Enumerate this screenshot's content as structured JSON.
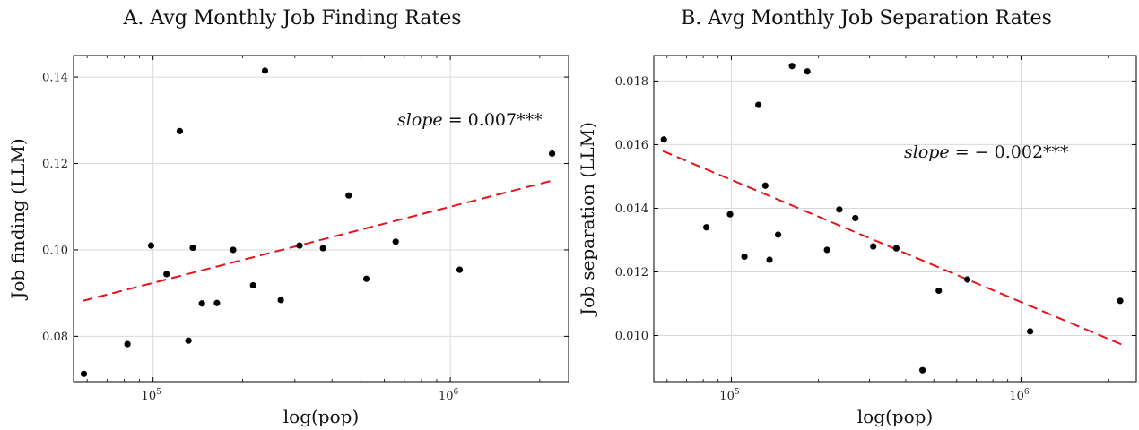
{
  "chart_data": [
    {
      "type": "scatter",
      "title": "A. Avg Monthly Job Finding Rates",
      "xlabel": "log(pop)",
      "ylabel": "Job finding (LLM)",
      "xscale": "log",
      "xlim": [
        54000,
        2500000
      ],
      "ylim": [
        0.0695,
        0.145
      ],
      "xticks": [
        100000,
        1000000
      ],
      "xtick_labels": [
        {
          "base": "10",
          "exp": "5"
        },
        {
          "base": "10",
          "exp": "6"
        }
      ],
      "yticks": [
        0.08,
        0.1,
        0.12,
        0.14
      ],
      "ytick_labels": [
        "0.08",
        "0.10",
        "0.12",
        "0.14"
      ],
      "grid": true,
      "annotation": {
        "italic": "slope",
        "rest": " = 0.007***"
      },
      "fit_line": {
        "color": "#e8121b",
        "style": "dashed",
        "x": [
          58000,
          2250000
        ],
        "y": [
          0.0882,
          0.1162
        ]
      },
      "points": [
        {
          "x": 58500,
          "y": 0.0713
        },
        {
          "x": 82000,
          "y": 0.0782
        },
        {
          "x": 98500,
          "y": 0.101
        },
        {
          "x": 111000,
          "y": 0.0944
        },
        {
          "x": 123000,
          "y": 0.1275
        },
        {
          "x": 131500,
          "y": 0.079
        },
        {
          "x": 136000,
          "y": 0.1005
        },
        {
          "x": 146000,
          "y": 0.0876
        },
        {
          "x": 164000,
          "y": 0.0877
        },
        {
          "x": 186000,
          "y": 0.1
        },
        {
          "x": 217000,
          "y": 0.0918
        },
        {
          "x": 238000,
          "y": 0.1415
        },
        {
          "x": 269000,
          "y": 0.0884
        },
        {
          "x": 311000,
          "y": 0.101
        },
        {
          "x": 373000,
          "y": 0.1004
        },
        {
          "x": 455000,
          "y": 0.1126
        },
        {
          "x": 522000,
          "y": 0.0933
        },
        {
          "x": 655000,
          "y": 0.1019
        },
        {
          "x": 1075000,
          "y": 0.0954
        },
        {
          "x": 2200000,
          "y": 0.1223
        }
      ],
      "point_color": "#000000"
    },
    {
      "type": "scatter",
      "title": "B. Avg Monthly Job Separation Rates",
      "xlabel": "log(pop)",
      "ylabel": "Job separation (LLM)",
      "xscale": "log",
      "xlim": [
        54000,
        2500000
      ],
      "ylim": [
        0.00855,
        0.0188
      ],
      "xticks": [
        100000,
        1000000
      ],
      "xtick_labels": [
        {
          "base": "10",
          "exp": "5"
        },
        {
          "base": "10",
          "exp": "6"
        }
      ],
      "yticks": [
        0.01,
        0.012,
        0.014,
        0.016,
        0.018
      ],
      "ytick_labels": [
        "0.010",
        "0.012",
        "0.014",
        "0.016",
        "0.018"
      ],
      "grid": true,
      "annotation": {
        "italic": "slope",
        "rest": " = − 0.002***"
      },
      "fit_line": {
        "color": "#e8121b",
        "style": "dashed",
        "x": [
          58000,
          2250000
        ],
        "y": [
          0.0158,
          0.0097
        ]
      },
      "points": [
        {
          "x": 58500,
          "y": 0.01616
        },
        {
          "x": 82000,
          "y": 0.0134
        },
        {
          "x": 99000,
          "y": 0.01381
        },
        {
          "x": 111000,
          "y": 0.01248
        },
        {
          "x": 124000,
          "y": 0.01725
        },
        {
          "x": 131000,
          "y": 0.01471
        },
        {
          "x": 135500,
          "y": 0.01238
        },
        {
          "x": 145000,
          "y": 0.01317
        },
        {
          "x": 162000,
          "y": 0.01847
        },
        {
          "x": 183000,
          "y": 0.0183
        },
        {
          "x": 214000,
          "y": 0.01269
        },
        {
          "x": 236000,
          "y": 0.01396
        },
        {
          "x": 268000,
          "y": 0.01369
        },
        {
          "x": 309000,
          "y": 0.0128
        },
        {
          "x": 371000,
          "y": 0.01274
        },
        {
          "x": 457000,
          "y": 0.00891
        },
        {
          "x": 520000,
          "y": 0.01141
        },
        {
          "x": 653000,
          "y": 0.01176
        },
        {
          "x": 1075000,
          "y": 0.01013
        },
        {
          "x": 2200000,
          "y": 0.01109
        }
      ],
      "point_color": "#000000"
    }
  ]
}
